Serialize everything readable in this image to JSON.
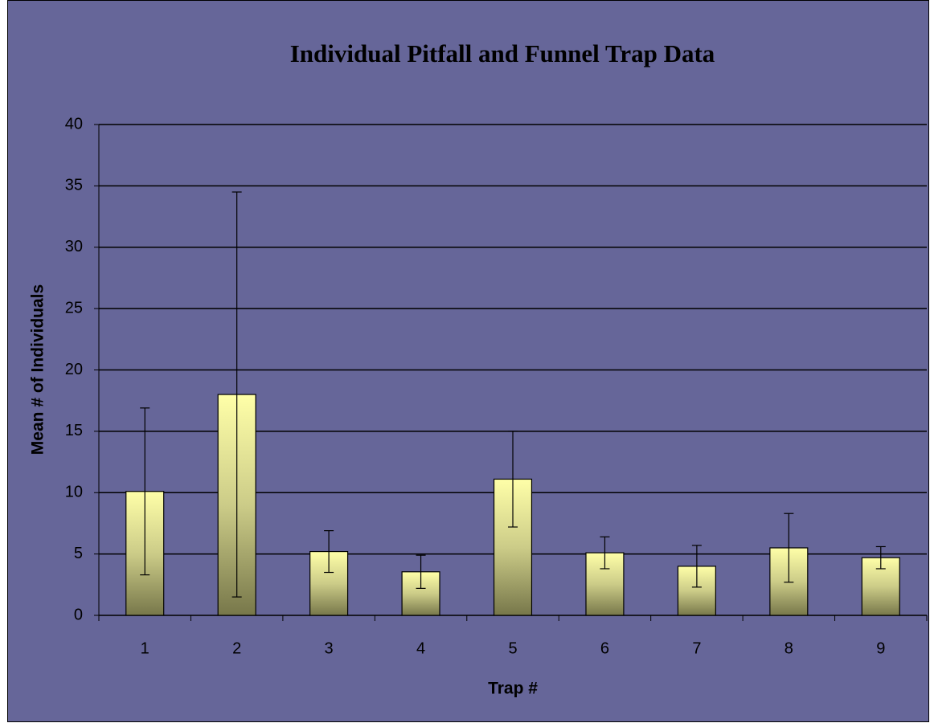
{
  "chart_data": {
    "type": "bar",
    "title": "Individual Pitfall and Funnel Trap Data",
    "x_label": "Trap #",
    "y_label": "Mean # of Individuals",
    "categories": [
      "1",
      "2",
      "3",
      "4",
      "5",
      "6",
      "7",
      "8",
      "9"
    ],
    "values": [
      10.1,
      18,
      5.2,
      3.55,
      11.1,
      5.1,
      4,
      5.5,
      4.7
    ],
    "errors": [
      6.8,
      16.5,
      1.7,
      1.35,
      3.9,
      1.3,
      1.7,
      2.8,
      0.9
    ],
    "color": "#ffffa8",
    "ylim": [
      0,
      40
    ],
    "yticks": [
      0,
      5,
      10,
      15,
      20,
      25,
      30,
      35,
      40
    ],
    "grid": true
  }
}
